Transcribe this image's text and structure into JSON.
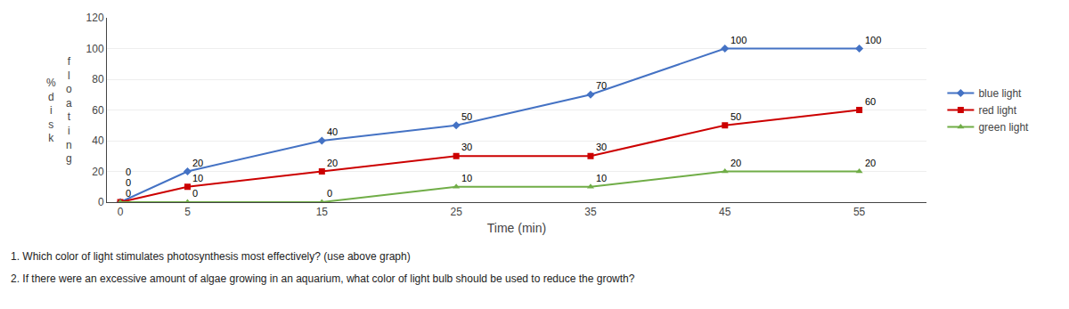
{
  "chart_data": {
    "type": "line",
    "x": [
      0,
      5,
      15,
      25,
      35,
      45,
      55
    ],
    "series": [
      {
        "name": "blue light",
        "color": "#4472C4",
        "marker": "diamond",
        "values": [
          0,
          20,
          40,
          50,
          70,
          100,
          100
        ]
      },
      {
        "name": "red light",
        "color": "#CC0000",
        "marker": "square",
        "values": [
          0,
          10,
          20,
          30,
          30,
          50,
          60
        ]
      },
      {
        "name": "green light",
        "color": "#70AD47",
        "marker": "triangle-up",
        "values": [
          0,
          0,
          0,
          10,
          10,
          20,
          20
        ]
      }
    ],
    "xlabel": "Time (min)",
    "ylabel": [
      "%disk",
      "floating"
    ],
    "xlim": [
      -1,
      60
    ],
    "xticks": [
      0,
      5,
      15,
      25,
      35,
      45,
      55
    ],
    "ylim": [
      0,
      120
    ],
    "yticks": [
      0,
      20,
      40,
      60,
      80,
      100,
      120
    ],
    "grid": "y",
    "legend": "right",
    "data_labels": true,
    "annotations": [
      "1. Which color of light stimulates photosynthesis most effectively? (use above graph)",
      "2. If there were an excessive amount of algae growing in an aquarium, what color of light bulb should be used to reduce the growth?"
    ]
  }
}
